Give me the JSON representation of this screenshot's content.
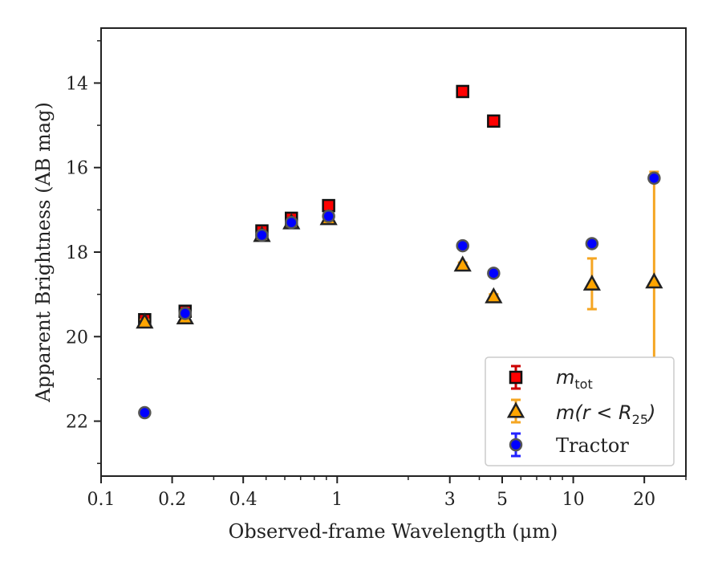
{
  "chart_data": {
    "type": "scatter",
    "title": "",
    "xlabel": "Observed-frame Wavelength (μm)",
    "ylabel": "Apparent Brightness (AB mag)",
    "xscale": "log",
    "xlim": [
      0.1,
      30
    ],
    "ylim": [
      23.3,
      12.7
    ],
    "y_inverted": true,
    "xticks": [
      {
        "value": 0.1,
        "label": "0.1"
      },
      {
        "value": 0.2,
        "label": "0.2"
      },
      {
        "value": 0.4,
        "label": "0.4"
      },
      {
        "value": 1,
        "label": "1"
      },
      {
        "value": 3,
        "label": "3"
      },
      {
        "value": 5,
        "label": "5"
      },
      {
        "value": 10,
        "label": "10"
      },
      {
        "value": 20,
        "label": "20"
      }
    ],
    "yticks": [
      {
        "value": 14,
        "label": "14"
      },
      {
        "value": 16,
        "label": "16"
      },
      {
        "value": 18,
        "label": "18"
      },
      {
        "value": 20,
        "label": "20"
      },
      {
        "value": 22,
        "label": "22"
      }
    ],
    "legend_position": "bottom-right",
    "series": [
      {
        "key": "mtot",
        "legend_main": "m",
        "legend_sub": "tot",
        "legend_tail": "",
        "marker": "square",
        "color": "#ff0000",
        "errcolor": "#cc0000",
        "points": [
          {
            "x": 0.153,
            "y": 19.6,
            "err": 0.05
          },
          {
            "x": 0.227,
            "y": 19.4,
            "err": 0.05
          },
          {
            "x": 0.48,
            "y": 17.5,
            "err": 0.05
          },
          {
            "x": 0.64,
            "y": 17.2,
            "err": 0.05
          },
          {
            "x": 0.92,
            "y": 16.9,
            "err": 0.05
          },
          {
            "x": 3.4,
            "y": 14.2,
            "err": 0.05
          },
          {
            "x": 4.6,
            "y": 14.9,
            "err": 0.05
          }
        ]
      },
      {
        "key": "mr25",
        "legend_main": "m(r < R",
        "legend_sub": "25",
        "legend_tail": ")",
        "marker": "triangle",
        "color": "#ffa500",
        "errcolor": "#f5a623",
        "points": [
          {
            "x": 0.153,
            "y": 19.65,
            "err": 0.05
          },
          {
            "x": 0.227,
            "y": 19.55,
            "err": 0.05
          },
          {
            "x": 0.48,
            "y": 17.6,
            "err": 0.05
          },
          {
            "x": 0.64,
            "y": 17.3,
            "err": 0.05
          },
          {
            "x": 0.92,
            "y": 17.2,
            "err": 0.05
          },
          {
            "x": 3.4,
            "y": 18.3,
            "err": 0.05
          },
          {
            "x": 4.6,
            "y": 19.05,
            "err": 0.05
          },
          {
            "x": 12.0,
            "y": 18.75,
            "err": 0.6
          },
          {
            "x": 22.0,
            "y": 18.7,
            "err": 2.6
          }
        ]
      },
      {
        "key": "tractor",
        "legend_main": "Tractor",
        "legend_sub": "",
        "legend_tail": "",
        "marker": "circle",
        "color": "#0000ff",
        "errcolor": "#2222ff",
        "points": [
          {
            "x": 0.153,
            "y": 21.8,
            "err": 0.05
          },
          {
            "x": 0.227,
            "y": 19.45,
            "err": 0.05
          },
          {
            "x": 0.48,
            "y": 17.6,
            "err": 0.05
          },
          {
            "x": 0.64,
            "y": 17.3,
            "err": 0.05
          },
          {
            "x": 0.92,
            "y": 17.15,
            "err": 0.05
          },
          {
            "x": 3.4,
            "y": 17.85,
            "err": 0.05
          },
          {
            "x": 4.6,
            "y": 18.5,
            "err": 0.05
          },
          {
            "x": 12.0,
            "y": 17.8,
            "err": 0.05
          },
          {
            "x": 22.0,
            "y": 16.25,
            "err": 0.05
          }
        ]
      }
    ]
  }
}
